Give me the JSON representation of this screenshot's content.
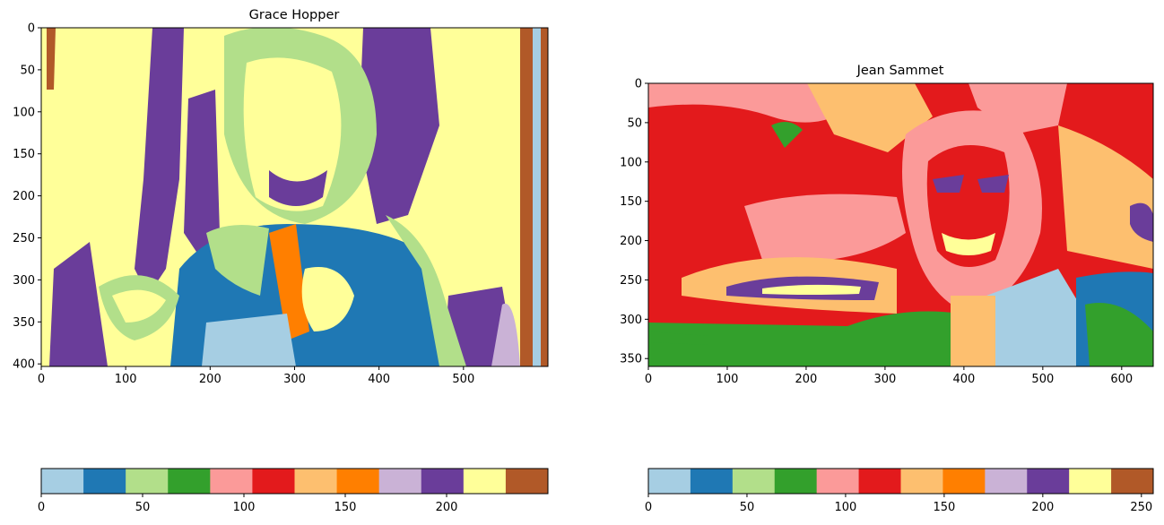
{
  "colors": {
    "paired_cmap": [
      "#a6cee3",
      "#1f78b4",
      "#b2df8a",
      "#33a02c",
      "#fb9a99",
      "#e31a1c",
      "#fdbf6f",
      "#ff7f00",
      "#cab2d6",
      "#6a3d9a",
      "#ffff99",
      "#b15928"
    ]
  },
  "chart_data": [
    {
      "type": "heatmap",
      "title": "Grace Hopper",
      "xlabel": "",
      "ylabel": "",
      "xlim": [
        0,
        600
      ],
      "ylim": [
        403,
        0
      ],
      "xticks": [
        0,
        100,
        200,
        300,
        400,
        500
      ],
      "yticks": [
        0,
        50,
        100,
        150,
        200,
        250,
        300,
        350,
        400
      ],
      "colormap": "Paired",
      "colorbar": {
        "orientation": "horizontal",
        "range": [
          0,
          250
        ],
        "ticks": [
          0,
          50,
          100,
          150,
          200
        ],
        "levels": 12
      }
    },
    {
      "type": "heatmap",
      "title": "Jean Sammet",
      "xlabel": "",
      "ylabel": "",
      "xlim": [
        0,
        640
      ],
      "ylim": [
        360,
        0
      ],
      "xticks": [
        0,
        100,
        200,
        300,
        400,
        500,
        600
      ],
      "yticks": [
        0,
        50,
        100,
        150,
        200,
        250,
        300,
        350
      ],
      "colormap": "Paired",
      "colorbar": {
        "orientation": "horizontal",
        "range": [
          0,
          256
        ],
        "ticks": [
          0,
          50,
          100,
          150,
          200,
          250
        ],
        "levels": 12
      }
    }
  ]
}
